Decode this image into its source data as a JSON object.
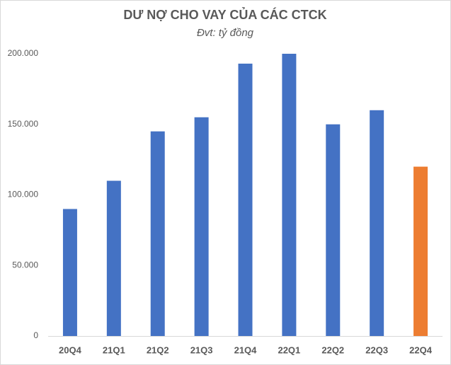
{
  "chart_data": {
    "type": "bar",
    "title": "DƯ NỢ CHO VAY CỦA CÁC CTCK",
    "subtitle": "Đvt: tỷ đồng",
    "categories": [
      "20Q4",
      "21Q1",
      "21Q2",
      "21Q3",
      "21Q4",
      "22Q1",
      "22Q2",
      "22Q3",
      "22Q4"
    ],
    "values": [
      90000,
      110000,
      145000,
      155000,
      193000,
      200000,
      150000,
      160000,
      120000
    ],
    "colors": [
      "#4472c4",
      "#4472c4",
      "#4472c4",
      "#4472c4",
      "#4472c4",
      "#4472c4",
      "#4472c4",
      "#4472c4",
      "#ed7d31"
    ],
    "ylim": [
      0,
      200000
    ],
    "yticks": [
      0,
      {
        "value": 50000,
        "label": "50.000"
      },
      {
        "value": 100000,
        "label": "100.000"
      },
      {
        "value": 150000,
        "label": "150.000"
      },
      {
        "value": 200000,
        "label": "200.000"
      }
    ],
    "grid": false
  }
}
